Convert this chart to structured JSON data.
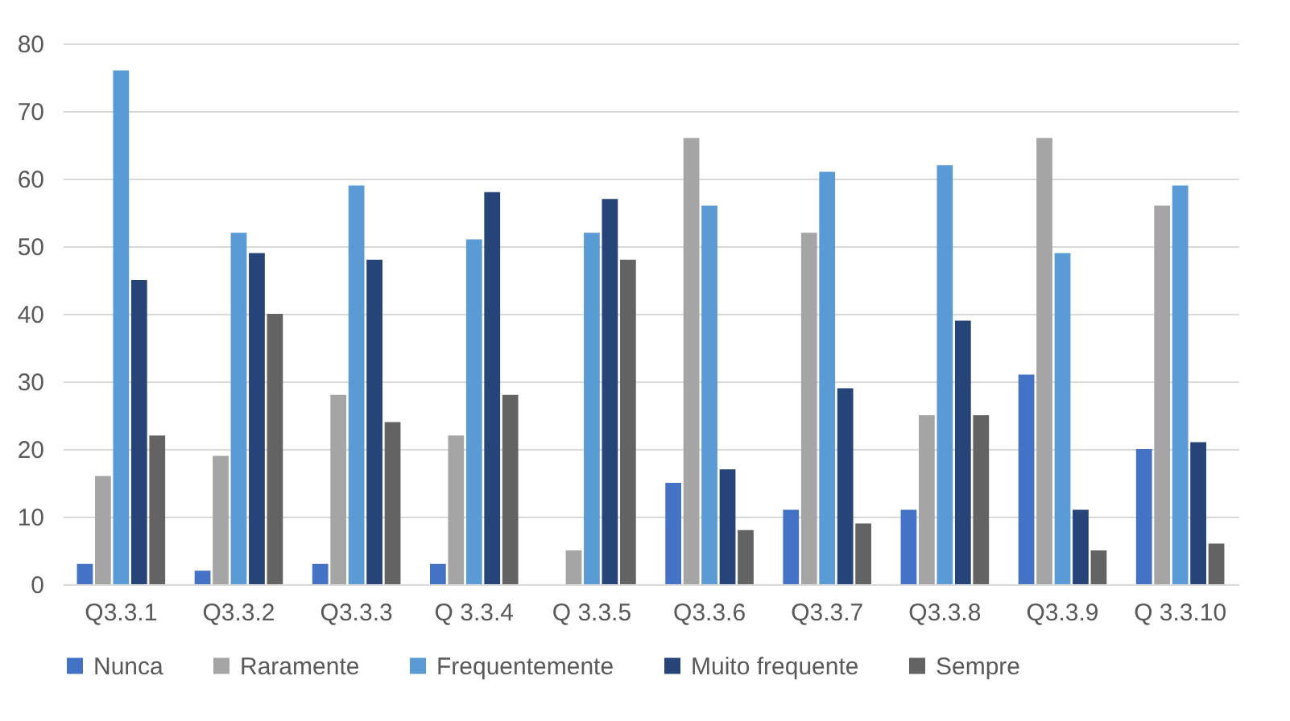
{
  "chart_data": {
    "type": "bar",
    "categories": [
      "Q3.3.1",
      "Q3.3.2",
      "Q3.3.3",
      "Q 3.3.4",
      "Q 3.3.5",
      "Q3.3.6",
      "Q3.3.7",
      "Q3.3.8",
      "Q3.3.9",
      "Q 3.3.10"
    ],
    "series": [
      {
        "name": "Nunca",
        "color": "#4472c4",
        "values": [
          3,
          2,
          3,
          3,
          0,
          15,
          11,
          11,
          31,
          20
        ]
      },
      {
        "name": "Raramente",
        "color": "#a5a5a5",
        "values": [
          16,
          19,
          28,
          22,
          5,
          66,
          52,
          25,
          66,
          56
        ]
      },
      {
        "name": "Frequentemente",
        "color": "#5b9bd5",
        "values": [
          76,
          52,
          59,
          51,
          52,
          56,
          61,
          62,
          49,
          59
        ]
      },
      {
        "name": "Muito frequente",
        "color": "#264478",
        "values": [
          45,
          49,
          48,
          58,
          57,
          17,
          29,
          39,
          11,
          21
        ]
      },
      {
        "name": "Sempre",
        "color": "#636363",
        "values": [
          22,
          40,
          24,
          28,
          48,
          8,
          9,
          25,
          5,
          6
        ]
      }
    ],
    "ylim": [
      0,
      80
    ],
    "yticks": [
      0,
      10,
      20,
      30,
      40,
      50,
      60,
      70,
      80
    ],
    "grid": "y",
    "legend": "bottom"
  }
}
